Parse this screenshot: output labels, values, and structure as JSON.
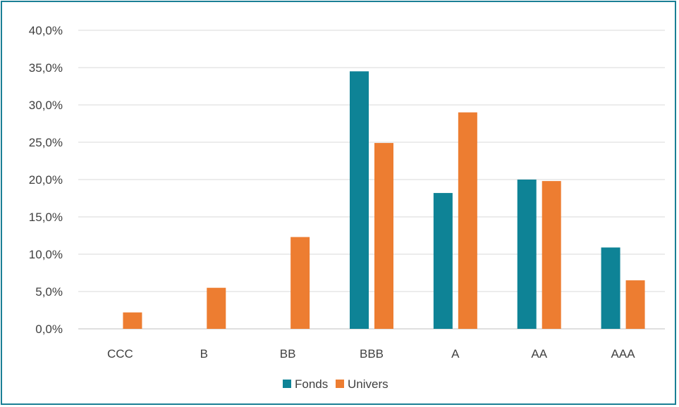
{
  "chart_data": {
    "type": "bar",
    "title": "",
    "xlabel": "",
    "ylabel": "",
    "categories": [
      "CCC",
      "B",
      "BB",
      "BBB",
      "A",
      "AA",
      "AAA"
    ],
    "series": [
      {
        "name": "Fonds",
        "color": "#0e8396",
        "values": [
          0.0,
          0.0,
          0.0,
          34.5,
          18.2,
          20.0,
          10.9
        ]
      },
      {
        "name": "Univers",
        "color": "#ed7d31",
        "values": [
          2.2,
          5.5,
          12.3,
          24.9,
          29.0,
          19.8,
          6.5
        ]
      }
    ],
    "ylim": [
      0,
      40
    ],
    "ytick_labels": [
      "0,0%",
      "5,0%",
      "10,0%",
      "15,0%",
      "20,0%",
      "25,0%",
      "30,0%",
      "35,0%",
      "40,0%"
    ],
    "grid": true,
    "legend_position": "bottom",
    "border_color": "#1a7f95"
  }
}
